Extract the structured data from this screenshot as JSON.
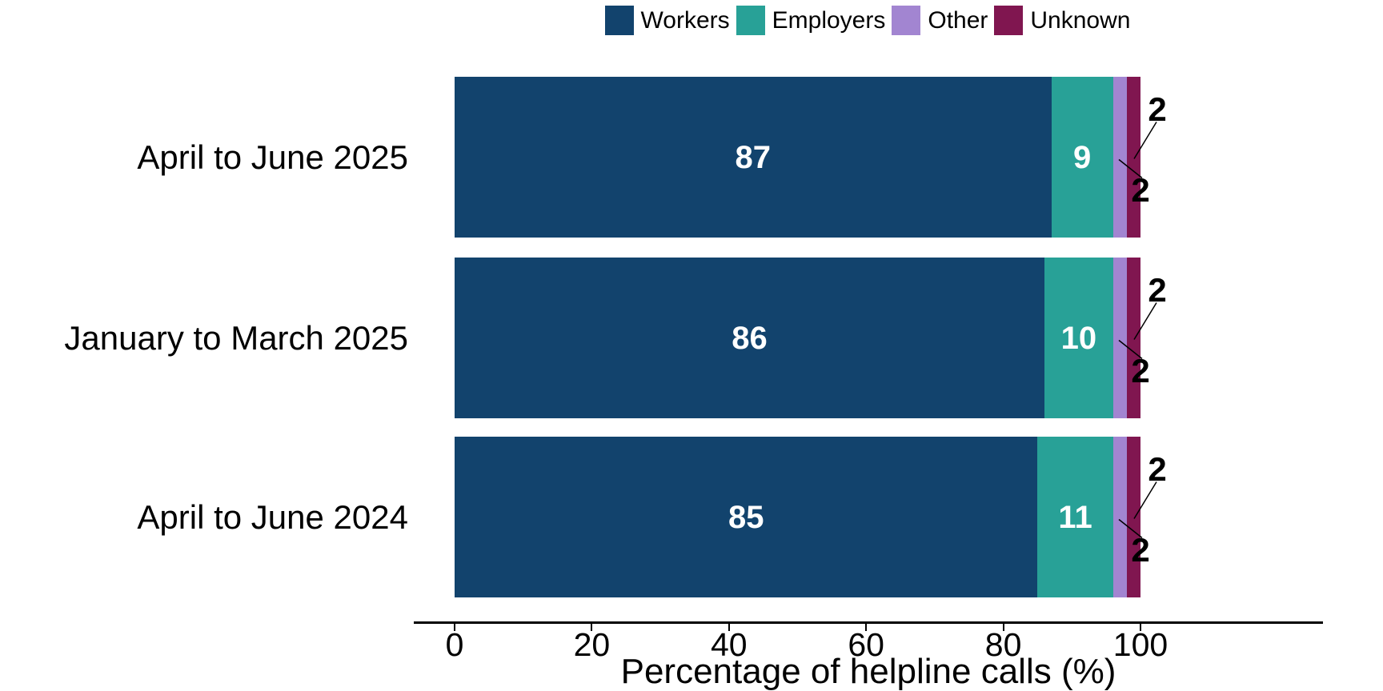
{
  "chart_data": {
    "type": "bar",
    "orientation": "horizontal",
    "stacked": true,
    "title": "",
    "xlabel": "Percentage of helpline calls (%)",
    "ylabel": "",
    "categories": [
      "April to June 2025",
      "January to March 2025",
      "April to June 2024"
    ],
    "series": [
      {
        "name": "Workers",
        "color": "#12436D",
        "values": [
          87,
          86,
          85
        ],
        "label_placement": "inside",
        "label_color": "#ffffff"
      },
      {
        "name": "Employers",
        "color": "#28A197",
        "values": [
          9,
          10,
          11
        ],
        "label_placement": "inside",
        "label_color": "#ffffff"
      },
      {
        "name": "Other",
        "color": "#A285D1",
        "values": [
          2,
          2,
          2
        ],
        "label_placement": "callout-below",
        "label_color": "#000000"
      },
      {
        "name": "Unknown",
        "color": "#801650",
        "values": [
          2,
          2,
          2
        ],
        "label_placement": "callout-above",
        "label_color": "#000000"
      }
    ],
    "x_ticks": [
      0,
      20,
      40,
      60,
      80,
      100
    ],
    "xlim": [
      0,
      100
    ],
    "grid": false,
    "legend_position": "top",
    "axis_color": "#000000",
    "text_color": "#000000",
    "leader_line_color": "#000000"
  }
}
